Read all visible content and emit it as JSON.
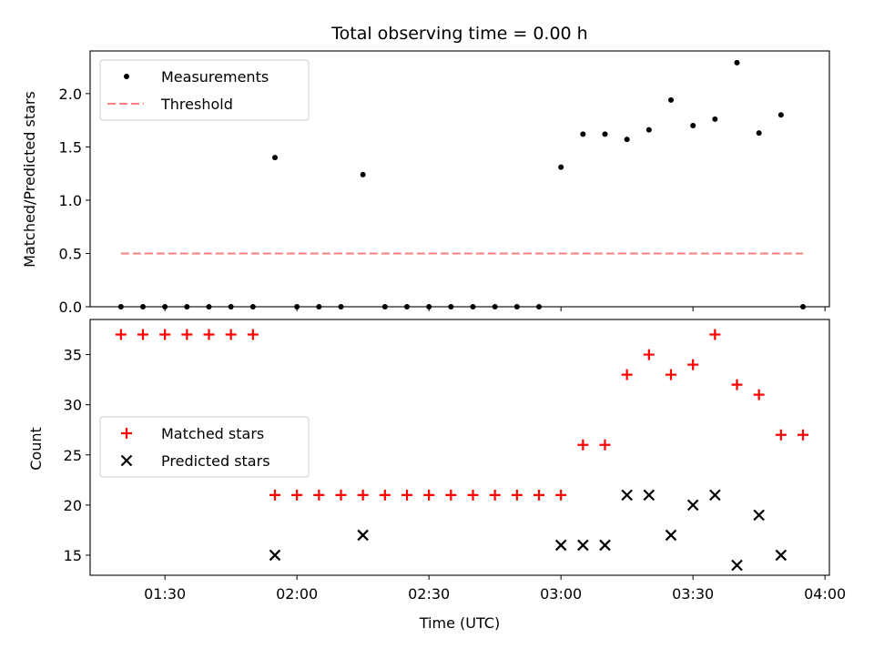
{
  "chart_data": {
    "type": "scatter",
    "title": "Total observing time = 0.00 h",
    "xlabel": "Time (UTC)",
    "xlim": [
      "01:13",
      "04:01"
    ],
    "xticks": [
      "01:30",
      "02:00",
      "02:30",
      "03:00",
      "03:30",
      "04:00"
    ],
    "panels": [
      {
        "ylabel": "Matched/Predicted stars",
        "ylim": [
          0,
          2.4
        ],
        "yticks": [
          "0.0",
          "0.5",
          "1.0",
          "1.5",
          "2.0"
        ],
        "legend_placement": "upper-left",
        "series": [
          {
            "name": "Measurements",
            "marker": "dot",
            "color": "#000000",
            "x": [
              "01:20",
              "01:25",
              "01:30",
              "01:35",
              "01:40",
              "01:45",
              "01:50",
              "01:55",
              "02:00",
              "02:05",
              "02:10",
              "02:15",
              "02:20",
              "02:25",
              "02:30",
              "02:35",
              "02:40",
              "02:45",
              "02:50",
              "02:55",
              "03:00",
              "03:05",
              "03:10",
              "03:15",
              "03:20",
              "03:25",
              "03:30",
              "03:35",
              "03:40",
              "03:45",
              "03:50",
              "03:55"
            ],
            "y": [
              0,
              0,
              0,
              0,
              0,
              0,
              0,
              1.4,
              0,
              0,
              0,
              1.24,
              0,
              0,
              0,
              0,
              0,
              0,
              0,
              0,
              1.31,
              1.62,
              1.62,
              1.57,
              1.66,
              1.94,
              1.7,
              1.76,
              2.29,
              1.63,
              1.8,
              0
            ]
          },
          {
            "name": "Threshold",
            "marker": "dashed-line",
            "color": "#ff7f7f",
            "x": [
              "01:20",
              "03:55"
            ],
            "y": [
              0.5,
              0.5
            ]
          }
        ]
      },
      {
        "ylabel": "Count",
        "ylim": [
          13,
          38.5
        ],
        "yticks": [
          "15",
          "20",
          "25",
          "30",
          "35"
        ],
        "legend_placement": "center-left",
        "series": [
          {
            "name": "Matched stars",
            "marker": "plus",
            "color": "#ff0000",
            "x": [
              "01:20",
              "01:25",
              "01:30",
              "01:35",
              "01:40",
              "01:45",
              "01:50",
              "01:55",
              "02:00",
              "02:05",
              "02:10",
              "02:15",
              "02:20",
              "02:25",
              "02:30",
              "02:35",
              "02:40",
              "02:45",
              "02:50",
              "02:55",
              "03:00",
              "03:05",
              "03:10",
              "03:15",
              "03:20",
              "03:25",
              "03:30",
              "03:35",
              "03:40",
              "03:45",
              "03:50",
              "03:55"
            ],
            "y": [
              37,
              37,
              37,
              37,
              37,
              37,
              37,
              21,
              21,
              21,
              21,
              21,
              21,
              21,
              21,
              21,
              21,
              21,
              21,
              21,
              21,
              26,
              26,
              33,
              35,
              33,
              34,
              37,
              32,
              31,
              27,
              27
            ]
          },
          {
            "name": "Predicted stars",
            "marker": "x",
            "color": "#000000",
            "x": [
              "01:55",
              "02:15",
              "03:00",
              "03:05",
              "03:10",
              "03:15",
              "03:20",
              "03:25",
              "03:30",
              "03:35",
              "03:40",
              "03:45",
              "03:50"
            ],
            "y": [
              15,
              17,
              16,
              16,
              16,
              21,
              21,
              17,
              20,
              21,
              14,
              19,
              15
            ]
          }
        ]
      }
    ]
  }
}
